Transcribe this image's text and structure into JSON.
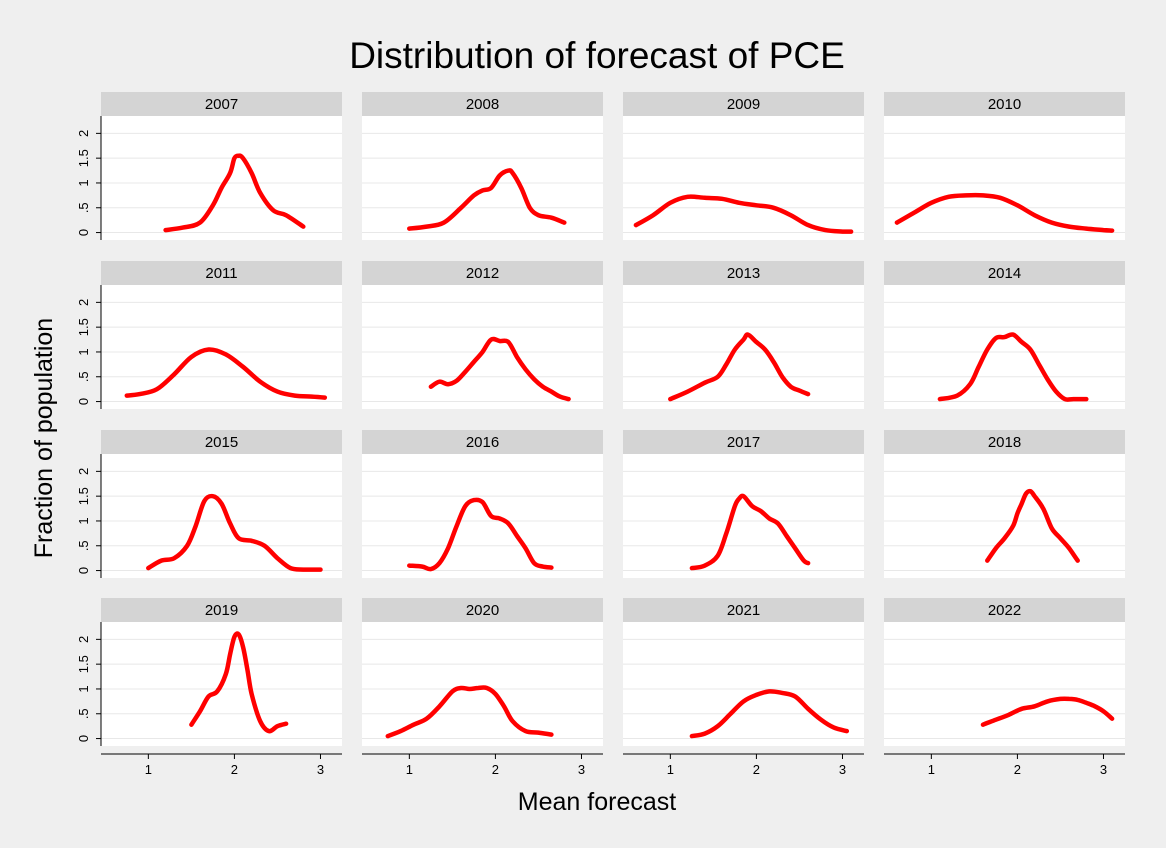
{
  "chart_data": {
    "type": "line",
    "title": "Distribution of forecast of PCE",
    "xlabel": "Mean forecast",
    "ylabel": "Fraction of population",
    "xlim": [
      0.45,
      3.25
    ],
    "ylim": [
      -0.15,
      2.35
    ],
    "x_ticks": [
      1,
      2,
      3
    ],
    "x_tick_labels": [
      "1",
      "2",
      "3"
    ],
    "y_ticks": [
      0,
      0.5,
      1,
      1.5,
      2
    ],
    "y_tick_labels": [
      "0",
      ".5",
      "1",
      "1.5",
      "2"
    ],
    "grid": true,
    "line_color": "#ff0000",
    "layout": "4x4 panels by year",
    "panels": [
      {
        "label": "2007",
        "x": [
          1.2,
          1.4,
          1.6,
          1.75,
          1.85,
          1.95,
          2.0,
          2.05,
          2.1,
          2.2,
          2.3,
          2.45,
          2.6,
          2.8
        ],
        "y": [
          0.05,
          0.1,
          0.2,
          0.55,
          0.9,
          1.2,
          1.5,
          1.55,
          1.5,
          1.2,
          0.8,
          0.45,
          0.35,
          0.12
        ]
      },
      {
        "label": "2008",
        "x": [
          1.0,
          1.2,
          1.4,
          1.6,
          1.75,
          1.85,
          1.95,
          2.05,
          2.15,
          2.2,
          2.3,
          2.4,
          2.5,
          2.65,
          2.8
        ],
        "y": [
          0.08,
          0.12,
          0.2,
          0.5,
          0.75,
          0.85,
          0.9,
          1.15,
          1.25,
          1.2,
          0.9,
          0.5,
          0.35,
          0.3,
          0.2
        ]
      },
      {
        "label": "2009",
        "x": [
          0.6,
          0.8,
          1.0,
          1.2,
          1.4,
          1.6,
          1.8,
          2.0,
          2.2,
          2.4,
          2.6,
          2.8,
          3.0,
          3.1
        ],
        "y": [
          0.15,
          0.35,
          0.6,
          0.72,
          0.7,
          0.68,
          0.6,
          0.55,
          0.5,
          0.35,
          0.15,
          0.05,
          0.02,
          0.02
        ]
      },
      {
        "label": "2010",
        "x": [
          0.6,
          0.8,
          1.0,
          1.2,
          1.4,
          1.6,
          1.8,
          2.0,
          2.2,
          2.4,
          2.6,
          2.8,
          3.0,
          3.1
        ],
        "y": [
          0.2,
          0.4,
          0.6,
          0.72,
          0.75,
          0.75,
          0.7,
          0.55,
          0.35,
          0.2,
          0.12,
          0.08,
          0.05,
          0.04
        ]
      },
      {
        "label": "2011",
        "x": [
          0.75,
          0.9,
          1.1,
          1.3,
          1.5,
          1.7,
          1.9,
          2.1,
          2.3,
          2.5,
          2.7,
          2.9,
          3.05
        ],
        "y": [
          0.12,
          0.15,
          0.25,
          0.55,
          0.9,
          1.05,
          0.95,
          0.7,
          0.4,
          0.2,
          0.12,
          0.1,
          0.08
        ]
      },
      {
        "label": "2012",
        "x": [
          1.25,
          1.35,
          1.45,
          1.55,
          1.65,
          1.75,
          1.85,
          1.95,
          2.05,
          2.15,
          2.25,
          2.35,
          2.45,
          2.55,
          2.65,
          2.75,
          2.85
        ],
        "y": [
          0.3,
          0.4,
          0.35,
          0.42,
          0.6,
          0.8,
          1.0,
          1.25,
          1.22,
          1.2,
          0.9,
          0.65,
          0.45,
          0.3,
          0.2,
          0.1,
          0.05
        ]
      },
      {
        "label": "2013",
        "x": [
          1.0,
          1.2,
          1.4,
          1.55,
          1.65,
          1.75,
          1.85,
          1.9,
          2.0,
          2.1,
          2.2,
          2.3,
          2.4,
          2.5,
          2.6
        ],
        "y": [
          0.05,
          0.2,
          0.38,
          0.5,
          0.75,
          1.05,
          1.25,
          1.35,
          1.2,
          1.05,
          0.8,
          0.5,
          0.3,
          0.22,
          0.15
        ]
      },
      {
        "label": "2014",
        "x": [
          1.1,
          1.3,
          1.45,
          1.55,
          1.65,
          1.75,
          1.85,
          1.95,
          2.05,
          2.15,
          2.25,
          2.35,
          2.45,
          2.55,
          2.65,
          2.8
        ],
        "y": [
          0.05,
          0.12,
          0.35,
          0.7,
          1.05,
          1.28,
          1.3,
          1.35,
          1.2,
          1.05,
          0.75,
          0.45,
          0.2,
          0.05,
          0.05,
          0.05
        ]
      },
      {
        "label": "2015",
        "x": [
          1.0,
          1.15,
          1.3,
          1.45,
          1.55,
          1.65,
          1.75,
          1.85,
          1.95,
          2.05,
          2.2,
          2.35,
          2.5,
          2.65,
          2.8,
          3.0
        ],
        "y": [
          0.05,
          0.2,
          0.25,
          0.5,
          0.9,
          1.4,
          1.5,
          1.35,
          0.95,
          0.65,
          0.6,
          0.5,
          0.25,
          0.05,
          0.02,
          0.02
        ]
      },
      {
        "label": "2016",
        "x": [
          1.0,
          1.15,
          1.25,
          1.35,
          1.45,
          1.55,
          1.65,
          1.75,
          1.85,
          1.95,
          2.05,
          2.15,
          2.25,
          2.35,
          2.45,
          2.55,
          2.65
        ],
        "y": [
          0.1,
          0.08,
          0.03,
          0.15,
          0.45,
          0.9,
          1.3,
          1.42,
          1.38,
          1.1,
          1.05,
          0.95,
          0.7,
          0.45,
          0.15,
          0.08,
          0.06
        ]
      },
      {
        "label": "2017",
        "x": [
          1.25,
          1.4,
          1.55,
          1.65,
          1.75,
          1.8,
          1.85,
          1.95,
          2.05,
          2.15,
          2.25,
          2.35,
          2.45,
          2.55,
          2.6
        ],
        "y": [
          0.05,
          0.1,
          0.3,
          0.75,
          1.3,
          1.45,
          1.5,
          1.3,
          1.2,
          1.05,
          0.95,
          0.7,
          0.45,
          0.2,
          0.15
        ]
      },
      {
        "label": "2018",
        "x": [
          1.65,
          1.75,
          1.85,
          1.95,
          2.0,
          2.05,
          2.1,
          2.15,
          2.2,
          2.3,
          2.4,
          2.5,
          2.6,
          2.7
        ],
        "y": [
          0.2,
          0.45,
          0.65,
          0.9,
          1.15,
          1.35,
          1.55,
          1.6,
          1.5,
          1.25,
          0.85,
          0.65,
          0.45,
          0.2
        ]
      },
      {
        "label": "2019",
        "x": [
          1.5,
          1.6,
          1.7,
          1.8,
          1.9,
          1.95,
          2.0,
          2.05,
          2.1,
          2.15,
          2.2,
          2.3,
          2.4,
          2.5,
          2.6
        ],
        "y": [
          0.28,
          0.55,
          0.85,
          0.95,
          1.3,
          1.7,
          2.05,
          2.1,
          1.85,
          1.4,
          0.9,
          0.35,
          0.15,
          0.25,
          0.3
        ]
      },
      {
        "label": "2020",
        "x": [
          0.75,
          0.9,
          1.05,
          1.2,
          1.35,
          1.5,
          1.6,
          1.7,
          1.8,
          1.9,
          2.0,
          2.1,
          2.2,
          2.35,
          2.5,
          2.65
        ],
        "y": [
          0.05,
          0.15,
          0.28,
          0.4,
          0.65,
          0.95,
          1.02,
          1.0,
          1.02,
          1.02,
          0.9,
          0.65,
          0.35,
          0.15,
          0.12,
          0.08
        ]
      },
      {
        "label": "2021",
        "x": [
          1.25,
          1.4,
          1.55,
          1.7,
          1.85,
          2.0,
          2.15,
          2.3,
          2.45,
          2.6,
          2.75,
          2.9,
          3.05
        ],
        "y": [
          0.05,
          0.1,
          0.25,
          0.5,
          0.75,
          0.88,
          0.95,
          0.92,
          0.85,
          0.6,
          0.38,
          0.22,
          0.15
        ]
      },
      {
        "label": "2022",
        "x": [
          1.6,
          1.75,
          1.9,
          2.05,
          2.2,
          2.35,
          2.5,
          2.6,
          2.7,
          2.8,
          2.9,
          3.0,
          3.1
        ],
        "y": [
          0.28,
          0.38,
          0.48,
          0.6,
          0.65,
          0.75,
          0.8,
          0.8,
          0.78,
          0.72,
          0.65,
          0.55,
          0.4
        ]
      }
    ]
  }
}
